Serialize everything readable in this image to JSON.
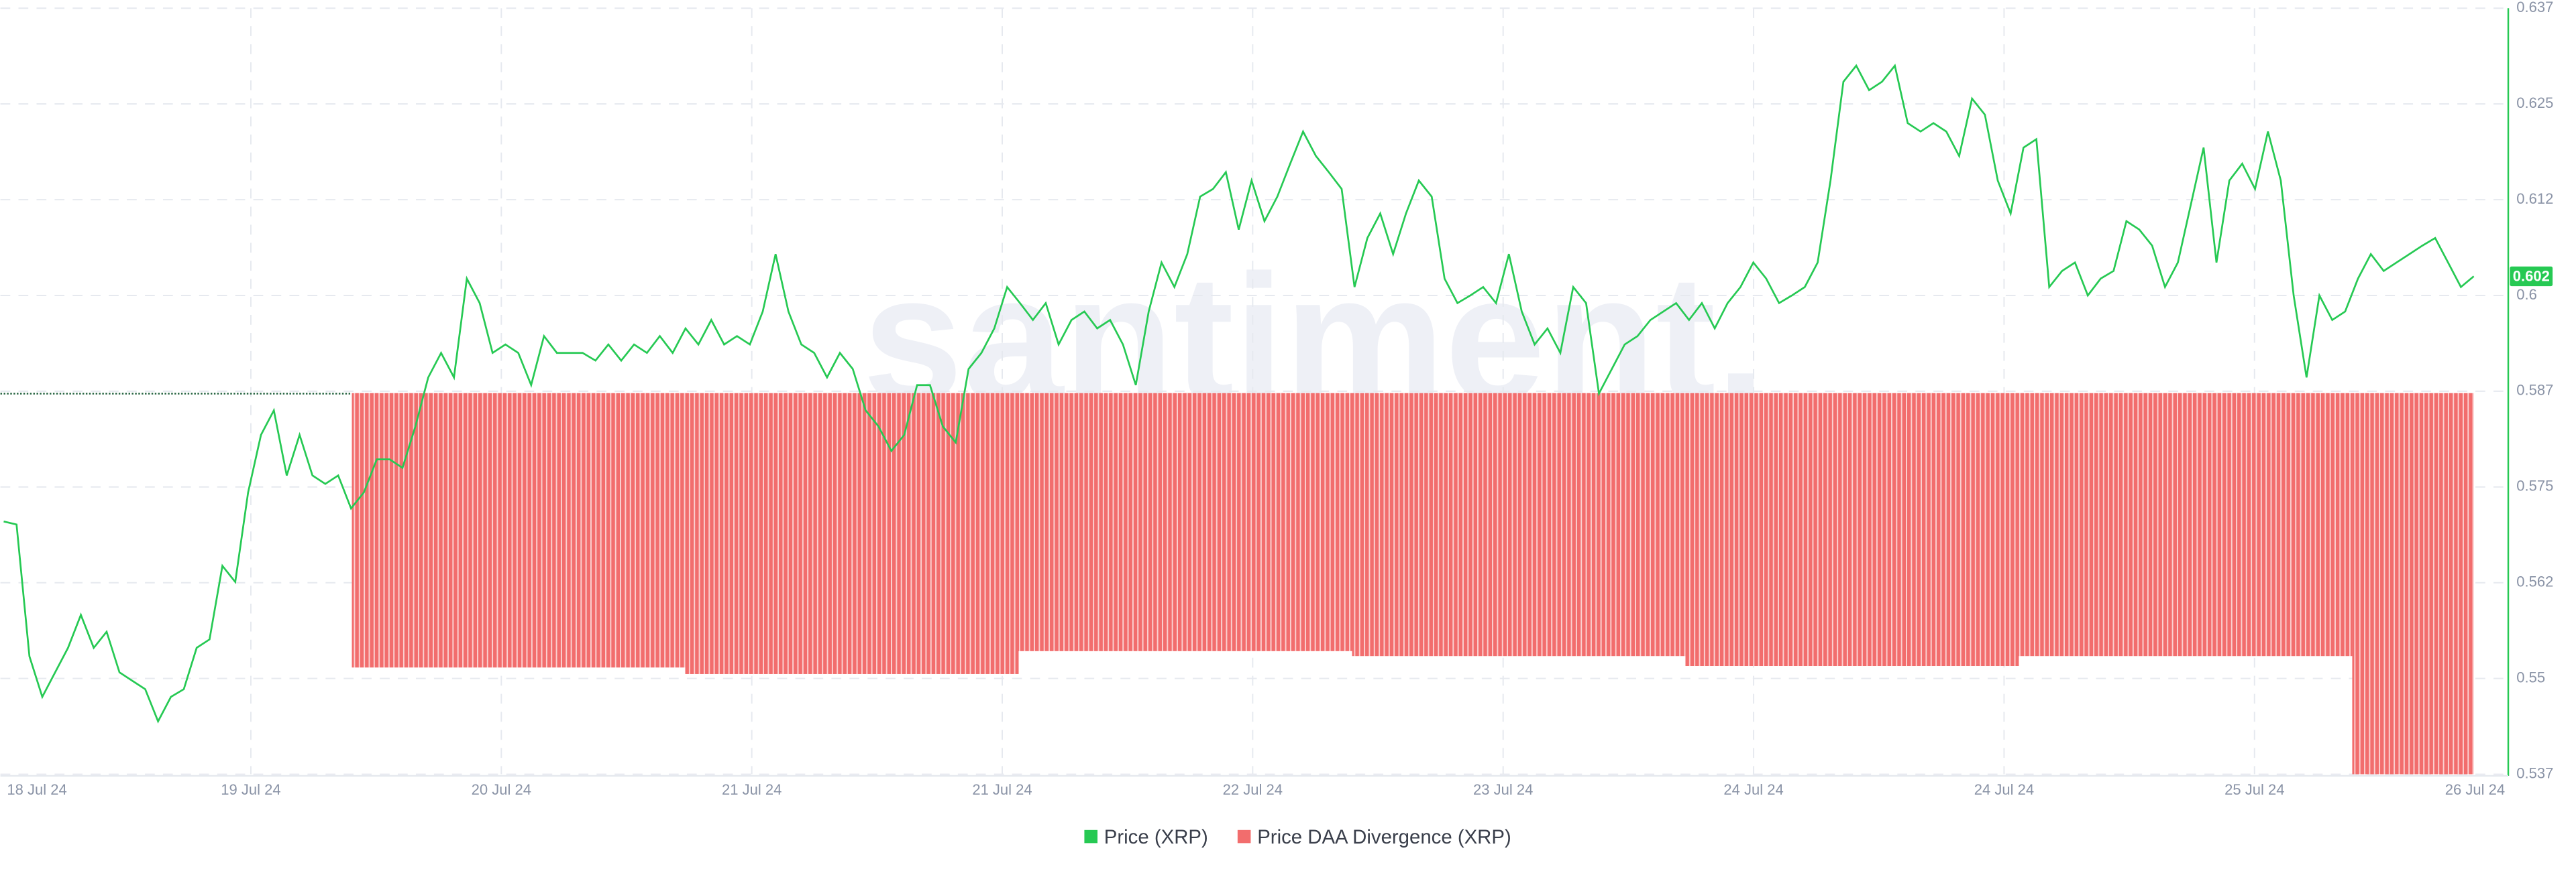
{
  "chart_data": {
    "type": "line",
    "watermark": "santiment.",
    "current_price_label": "0.602",
    "x_labels": [
      "18 Jul 24",
      "19 Jul 24",
      "20 Jul 24",
      "21 Jul 24",
      "21 Jul 24",
      "22 Jul 24",
      "23 Jul 24",
      "24 Jul 24",
      "24 Jul 24",
      "25 Jul 24",
      "26 Jul 24"
    ],
    "ylim": [
      0.537,
      0.637
    ],
    "yticks": [
      0.637,
      {
        "value": 0.6245,
        "label": "0.625"
      },
      0.612,
      {
        "value": 0.5995,
        "label": "0.6"
      },
      0.587,
      {
        "value": 0.5745,
        "label": "0.575"
      },
      0.562,
      {
        "value": 0.5495,
        "label": "0.55"
      },
      0.537
    ],
    "y2lim": [
      -1,
      1.01
    ],
    "grid": true,
    "series": [
      {
        "name": "Price (XRP)",
        "color": "#26c953",
        "type": "line",
        "values": [
          0.57,
          0.5696,
          0.5524,
          0.5471,
          0.5503,
          0.5535,
          0.5578,
          0.5535,
          0.5556,
          0.5503,
          0.5492,
          0.5481,
          0.5439,
          0.5471,
          0.5481,
          0.5535,
          0.5546,
          0.5642,
          0.5621,
          0.5738,
          0.5813,
          0.5845,
          0.576,
          0.5813,
          0.576,
          0.5749,
          0.576,
          0.5717,
          0.5738,
          0.5781,
          0.5781,
          0.577,
          0.5824,
          0.5888,
          0.592,
          0.5888,
          0.6017,
          0.5985,
          0.592,
          0.5931,
          0.592,
          0.5878,
          0.5942,
          0.592,
          0.592,
          0.592,
          0.591,
          0.5931,
          0.591,
          0.5931,
          0.592,
          0.5942,
          0.592,
          0.5952,
          0.5931,
          0.5963,
          0.5931,
          0.5942,
          0.5931,
          0.5974,
          0.6049,
          0.5974,
          0.5931,
          0.592,
          0.5888,
          0.592,
          0.5899,
          0.5845,
          0.5824,
          0.5792,
          0.5813,
          0.5878,
          0.5878,
          0.5824,
          0.5803,
          0.5899,
          0.592,
          0.5952,
          0.6006,
          0.5985,
          0.5963,
          0.5985,
          0.5931,
          0.5963,
          0.5974,
          0.5952,
          0.5963,
          0.5931,
          0.5878,
          0.5974,
          0.6038,
          0.6006,
          0.6049,
          0.6124,
          0.6134,
          0.6156,
          0.6081,
          0.6145,
          0.6092,
          0.6124,
          0.6167,
          0.6209,
          0.6177,
          0.6156,
          0.6134,
          0.6006,
          0.607,
          0.6102,
          0.6049,
          0.6102,
          0.6145,
          0.6124,
          0.6017,
          0.5985,
          0.5995,
          0.6006,
          0.5985,
          0.6049,
          0.5974,
          0.5931,
          0.5952,
          0.592,
          0.6006,
          0.5985,
          0.5867,
          0.5899,
          0.5931,
          0.5942,
          0.5963,
          0.5974,
          0.5985,
          0.5963,
          0.5985,
          0.5952,
          0.5985,
          0.6006,
          0.6038,
          0.6017,
          0.5985,
          0.5995,
          0.6006,
          0.6038,
          0.6145,
          0.6274,
          0.6295,
          0.6263,
          0.6274,
          0.6295,
          0.622,
          0.6209,
          0.622,
          0.6209,
          0.6177,
          0.6252,
          0.6231,
          0.6145,
          0.6102,
          0.6188,
          0.6199,
          0.6006,
          0.6027,
          0.6038,
          0.5995,
          0.6017,
          0.6027,
          0.6092,
          0.6081,
          0.606,
          0.6006,
          0.6038,
          0.6113,
          0.6188,
          0.6038,
          0.6145,
          0.6167,
          0.6134,
          0.6209,
          0.6145,
          0.5995,
          0.5888,
          0.5995,
          0.5963,
          0.5974,
          0.6017,
          0.6049,
          0.6027,
          0.6038,
          0.6049,
          0.606,
          0.607,
          0.6038,
          0.6006,
          0.602
        ]
      },
      {
        "name": "Price DAA Divergence (XRP)",
        "color": "#f26d6d",
        "type": "bar",
        "axis": "y2",
        "values": [
          -0.72,
          -0.737,
          -0.677,
          -0.69,
          -0.716,
          -0.69,
          -1
        ]
      }
    ]
  }
}
